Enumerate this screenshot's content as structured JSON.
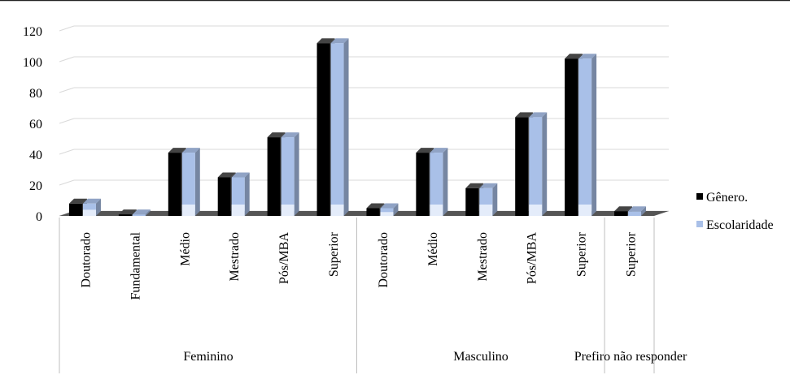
{
  "chart_data": {
    "type": "bar",
    "title": "",
    "xlabel": "",
    "ylabel": "",
    "ylim": [
      0,
      120
    ],
    "yticks": [
      0,
      20,
      40,
      60,
      80,
      100,
      120
    ],
    "grid": true,
    "legend_placement": "right",
    "groups": [
      {
        "label": "Feminino",
        "categories": [
          "Doutorado",
          "Fundamental",
          "Médio",
          "Mestrado",
          "Pós/MBA",
          "Superior"
        ]
      },
      {
        "label": "Masculino",
        "categories": [
          "Doutorado",
          "Médio",
          "Mestrado",
          "Pós/MBA",
          "Superior"
        ]
      },
      {
        "label": "Prefiro não responder",
        "categories": [
          "Superior"
        ]
      }
    ],
    "series": [
      {
        "name": "Gênero.",
        "color": "#000000",
        "values": [
          8,
          1,
          41,
          25,
          51,
          112,
          5,
          41,
          18,
          64,
          102,
          3
        ]
      },
      {
        "name": "Escolaridade",
        "color": "#a9c0e8",
        "values": [
          8,
          1,
          41,
          25,
          51,
          112,
          5,
          41,
          18,
          64,
          102,
          3
        ]
      }
    ]
  }
}
